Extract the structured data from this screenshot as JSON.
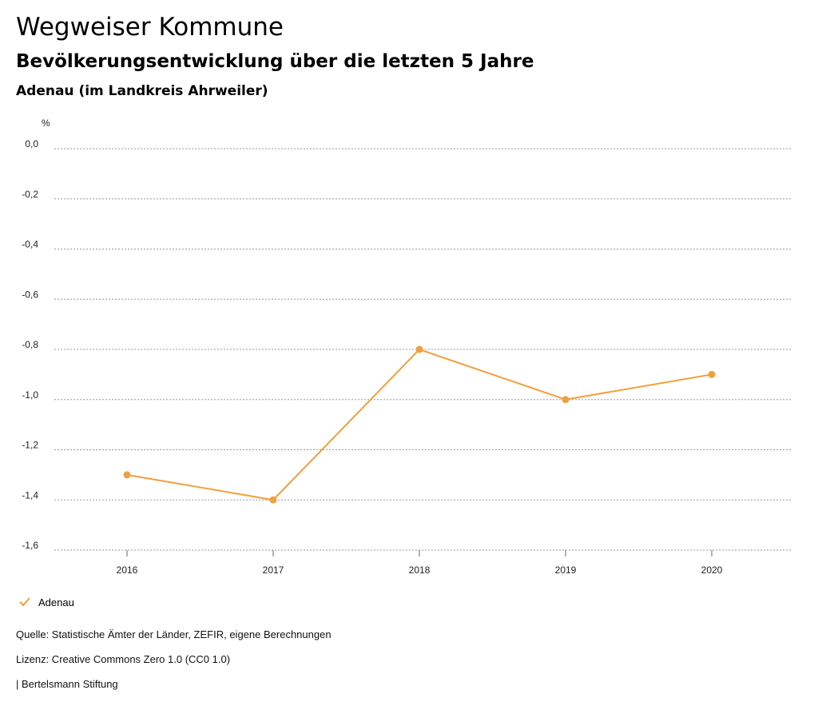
{
  "header": {
    "title": "Wegweiser Kommune",
    "subtitle": "Bevölkerungsentwicklung über die letzten 5 Jahre",
    "region": "Adenau (im Landkreis Ahrweiler)"
  },
  "chart_data": {
    "type": "line",
    "ylabel": "%",
    "categories": [
      "2016",
      "2017",
      "2018",
      "2019",
      "2020"
    ],
    "series": [
      {
        "name": "Adenau",
        "color": "#f0a03c",
        "values": [
          -1.3,
          -1.4,
          -0.8,
          -1.0,
          -0.9
        ]
      }
    ],
    "ylim": [
      -1.6,
      0.0
    ],
    "yticks": [
      0.0,
      -0.2,
      -0.4,
      -0.6,
      -0.8,
      -1.0,
      -1.2,
      -1.4,
      -1.6
    ],
    "ytick_labels": [
      "0,0",
      "-0,2",
      "-0,4",
      "-0,6",
      "-0,8",
      "-1,0",
      "-1,2",
      "-1,4",
      "-1,6"
    ],
    "grid": true,
    "legend_position": "bottom-left"
  },
  "legend": {
    "label": "Adenau",
    "icon": "check-icon"
  },
  "footer": {
    "source": "Quelle: Statistische Ämter der Länder, ZEFIR, eigene Berechnungen",
    "license": "Lizenz: Creative Commons Zero 1.0 (CC0 1.0)",
    "publisher": "| Bertelsmann Stiftung"
  }
}
